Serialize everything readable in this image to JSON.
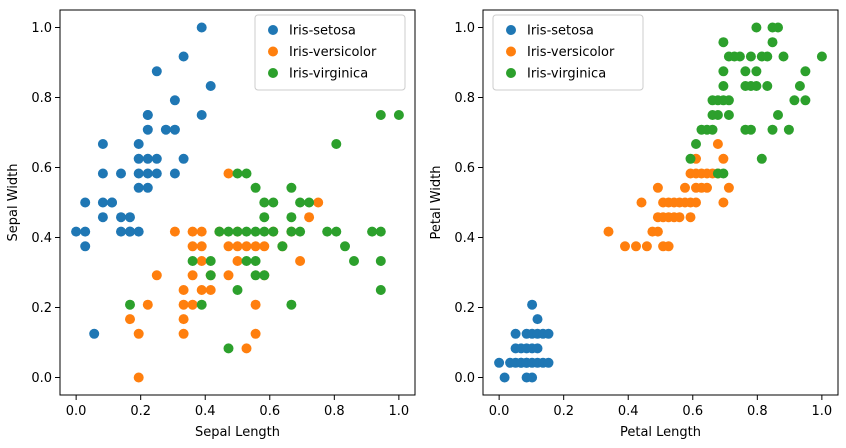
{
  "colors": {
    "Iris-setosa": "#1f77b4",
    "Iris-versicolor": "#ff7f0e",
    "Iris-virginica": "#2ca02c"
  },
  "chart_data": [
    {
      "type": "scatter",
      "xlabel": "Sepal Length",
      "ylabel": "Sepal Width",
      "xlim": [
        -0.05,
        1.05
      ],
      "ylim": [
        -0.05,
        1.05
      ],
      "xticks": [
        "0.0",
        "0.2",
        "0.4",
        "0.6",
        "0.8",
        "1.0"
      ],
      "yticks": [
        "0.0",
        "0.2",
        "0.4",
        "0.6",
        "0.8",
        "1.0"
      ],
      "legend_position": "top-right",
      "series": [
        {
          "name": "Iris-setosa",
          "points": [
            [
              0.0,
              0.417
            ],
            [
              0.028,
              0.417
            ],
            [
              0.028,
              0.375
            ],
            [
              0.028,
              0.5
            ],
            [
              0.056,
              0.125
            ],
            [
              0.083,
              0.458
            ],
            [
              0.083,
              0.5
            ],
            [
              0.083,
              0.583
            ],
            [
              0.083,
              0.667
            ],
            [
              0.111,
              0.5
            ],
            [
              0.111,
              0.5
            ],
            [
              0.139,
              0.583
            ],
            [
              0.139,
              0.458
            ],
            [
              0.139,
              0.417
            ],
            [
              0.167,
              0.458
            ],
            [
              0.167,
              0.417
            ],
            [
              0.167,
              0.417
            ],
            [
              0.194,
              0.417
            ],
            [
              0.194,
              0.583
            ],
            [
              0.194,
              0.625
            ],
            [
              0.194,
              0.667
            ],
            [
              0.194,
              0.542
            ],
            [
              0.222,
              0.542
            ],
            [
              0.222,
              0.583
            ],
            [
              0.222,
              0.625
            ],
            [
              0.222,
              0.708
            ],
            [
              0.222,
              0.75
            ],
            [
              0.222,
              0.75
            ],
            [
              0.25,
              0.583
            ],
            [
              0.25,
              0.625
            ],
            [
              0.25,
              0.875
            ],
            [
              0.278,
              0.708
            ],
            [
              0.306,
              0.708
            ],
            [
              0.306,
              0.792
            ],
            [
              0.306,
              0.583
            ],
            [
              0.333,
              0.625
            ],
            [
              0.333,
              0.917
            ],
            [
              0.389,
              0.75
            ],
            [
              0.389,
              1.0
            ],
            [
              0.417,
              0.833
            ]
          ]
        },
        {
          "name": "Iris-versicolor",
          "points": [
            [
              0.167,
              0.167
            ],
            [
              0.194,
              0.0
            ],
            [
              0.194,
              0.125
            ],
            [
              0.222,
              0.208
            ],
            [
              0.25,
              0.292
            ],
            [
              0.306,
              0.417
            ],
            [
              0.333,
              0.125
            ],
            [
              0.333,
              0.167
            ],
            [
              0.333,
              0.208
            ],
            [
              0.333,
              0.25
            ],
            [
              0.361,
              0.208
            ],
            [
              0.361,
              0.292
            ],
            [
              0.361,
              0.375
            ],
            [
              0.361,
              0.417
            ],
            [
              0.389,
              0.25
            ],
            [
              0.389,
              0.333
            ],
            [
              0.389,
              0.375
            ],
            [
              0.389,
              0.417
            ],
            [
              0.417,
              0.25
            ],
            [
              0.417,
              0.292
            ],
            [
              0.444,
              0.417
            ],
            [
              0.472,
              0.292
            ],
            [
              0.472,
              0.375
            ],
            [
              0.472,
              0.583
            ],
            [
              0.5,
              0.333
            ],
            [
              0.5,
              0.375
            ],
            [
              0.5,
              0.417
            ],
            [
              0.528,
              0.083
            ],
            [
              0.528,
              0.375
            ],
            [
              0.556,
              0.125
            ],
            [
              0.556,
              0.208
            ],
            [
              0.556,
              0.375
            ],
            [
              0.583,
              0.292
            ],
            [
              0.583,
              0.375
            ],
            [
              0.611,
              0.417
            ],
            [
              0.639,
              0.375
            ],
            [
              0.667,
              0.417
            ],
            [
              0.694,
              0.333
            ],
            [
              0.722,
              0.458
            ],
            [
              0.75,
              0.5
            ]
          ]
        },
        {
          "name": "Iris-virginica",
          "points": [
            [
              0.167,
              0.208
            ],
            [
              0.361,
              0.333
            ],
            [
              0.389,
              0.208
            ],
            [
              0.417,
              0.292
            ],
            [
              0.417,
              0.333
            ],
            [
              0.444,
              0.417
            ],
            [
              0.472,
              0.083
            ],
            [
              0.472,
              0.417
            ],
            [
              0.5,
              0.25
            ],
            [
              0.5,
              0.417
            ],
            [
              0.5,
              0.583
            ],
            [
              0.528,
              0.333
            ],
            [
              0.528,
              0.417
            ],
            [
              0.528,
              0.583
            ],
            [
              0.556,
              0.292
            ],
            [
              0.556,
              0.333
            ],
            [
              0.556,
              0.417
            ],
            [
              0.556,
              0.542
            ],
            [
              0.583,
              0.292
            ],
            [
              0.583,
              0.417
            ],
            [
              0.583,
              0.458
            ],
            [
              0.583,
              0.5
            ],
            [
              0.611,
              0.417
            ],
            [
              0.611,
              0.5
            ],
            [
              0.639,
              0.375
            ],
            [
              0.667,
              0.208
            ],
            [
              0.667,
              0.417
            ],
            [
              0.667,
              0.458
            ],
            [
              0.667,
              0.542
            ],
            [
              0.694,
              0.417
            ],
            [
              0.694,
              0.5
            ],
            [
              0.722,
              0.5
            ],
            [
              0.778,
              0.417
            ],
            [
              0.806,
              0.417
            ],
            [
              0.806,
              0.667
            ],
            [
              0.833,
              0.375
            ],
            [
              0.861,
              0.333
            ],
            [
              0.917,
              0.417
            ],
            [
              0.944,
              0.75
            ],
            [
              0.944,
              0.333
            ],
            [
              0.944,
              0.25
            ],
            [
              0.944,
              0.417
            ],
            [
              1.0,
              0.75
            ]
          ]
        }
      ]
    },
    {
      "type": "scatter",
      "xlabel": "Petal Length",
      "ylabel": "Petal Width",
      "xlim": [
        -0.05,
        1.05
      ],
      "ylim": [
        -0.05,
        1.05
      ],
      "xticks": [
        "0.0",
        "0.2",
        "0.4",
        "0.6",
        "0.8",
        "1.0"
      ],
      "yticks": [
        "0.0",
        "0.2",
        "0.4",
        "0.6",
        "0.8",
        "1.0"
      ],
      "legend_position": "top-left",
      "series": [
        {
          "name": "Iris-setosa",
          "points": [
            [
              0.0,
              0.042
            ],
            [
              0.017,
              0.0
            ],
            [
              0.034,
              0.042
            ],
            [
              0.051,
              0.042
            ],
            [
              0.051,
              0.083
            ],
            [
              0.051,
              0.125
            ],
            [
              0.068,
              0.042
            ],
            [
              0.068,
              0.083
            ],
            [
              0.068,
              0.042
            ],
            [
              0.085,
              0.042
            ],
            [
              0.085,
              0.0
            ],
            [
              0.085,
              0.125
            ],
            [
              0.085,
              0.083
            ],
            [
              0.085,
              0.042
            ],
            [
              0.102,
              0.0
            ],
            [
              0.102,
              0.042
            ],
            [
              0.102,
              0.083
            ],
            [
              0.102,
              0.125
            ],
            [
              0.102,
              0.208
            ],
            [
              0.119,
              0.042
            ],
            [
              0.119,
              0.125
            ],
            [
              0.119,
              0.167
            ],
            [
              0.119,
              0.083
            ],
            [
              0.136,
              0.042
            ],
            [
              0.136,
              0.125
            ],
            [
              0.153,
              0.042
            ],
            [
              0.153,
              0.125
            ]
          ]
        },
        {
          "name": "Iris-versicolor",
          "points": [
            [
              0.339,
              0.417
            ],
            [
              0.39,
              0.375
            ],
            [
              0.424,
              0.375
            ],
            [
              0.441,
              0.5
            ],
            [
              0.458,
              0.375
            ],
            [
              0.475,
              0.417
            ],
            [
              0.492,
              0.417
            ],
            [
              0.492,
              0.458
            ],
            [
              0.492,
              0.542
            ],
            [
              0.508,
              0.375
            ],
            [
              0.508,
              0.458
            ],
            [
              0.508,
              0.5
            ],
            [
              0.525,
              0.375
            ],
            [
              0.525,
              0.458
            ],
            [
              0.525,
              0.5
            ],
            [
              0.542,
              0.458
            ],
            [
              0.542,
              0.5
            ],
            [
              0.559,
              0.5
            ],
            [
              0.559,
              0.458
            ],
            [
              0.576,
              0.5
            ],
            [
              0.576,
              0.542
            ],
            [
              0.593,
              0.458
            ],
            [
              0.593,
              0.5
            ],
            [
              0.593,
              0.583
            ],
            [
              0.61,
              0.5
            ],
            [
              0.61,
              0.542
            ],
            [
              0.61,
              0.583
            ],
            [
              0.61,
              0.625
            ],
            [
              0.627,
              0.542
            ],
            [
              0.627,
              0.583
            ],
            [
              0.644,
              0.542
            ],
            [
              0.644,
              0.583
            ],
            [
              0.661,
              0.583
            ],
            [
              0.678,
              0.583
            ],
            [
              0.678,
              0.667
            ],
            [
              0.695,
              0.625
            ],
            [
              0.695,
              0.5
            ],
            [
              0.712,
              0.542
            ]
          ]
        },
        {
          "name": "Iris-virginica",
          "points": [
            [
              0.593,
              0.625
            ],
            [
              0.61,
              0.667
            ],
            [
              0.627,
              0.708
            ],
            [
              0.644,
              0.708
            ],
            [
              0.661,
              0.708
            ],
            [
              0.661,
              0.75
            ],
            [
              0.661,
              0.792
            ],
            [
              0.678,
              0.75
            ],
            [
              0.678,
              0.792
            ],
            [
              0.678,
              0.583
            ],
            [
              0.695,
              0.583
            ],
            [
              0.695,
              0.792
            ],
            [
              0.695,
              0.833
            ],
            [
              0.695,
              0.875
            ],
            [
              0.695,
              0.958
            ],
            [
              0.712,
              0.75
            ],
            [
              0.712,
              0.792
            ],
            [
              0.712,
              0.917
            ],
            [
              0.729,
              0.917
            ],
            [
              0.746,
              0.917
            ],
            [
              0.763,
              0.708
            ],
            [
              0.763,
              0.833
            ],
            [
              0.763,
              0.875
            ],
            [
              0.78,
              0.708
            ],
            [
              0.78,
              0.833
            ],
            [
              0.78,
              0.917
            ],
            [
              0.797,
              0.833
            ],
            [
              0.797,
              0.875
            ],
            [
              0.797,
              1.0
            ],
            [
              0.814,
              0.625
            ],
            [
              0.814,
              0.917
            ],
            [
              0.831,
              0.833
            ],
            [
              0.831,
              0.917
            ],
            [
              0.847,
              0.708
            ],
            [
              0.847,
              0.958
            ],
            [
              0.847,
              1.0
            ],
            [
              0.864,
              0.75
            ],
            [
              0.864,
              1.0
            ],
            [
              0.881,
              0.917
            ],
            [
              0.898,
              0.708
            ],
            [
              0.915,
              0.792
            ],
            [
              0.932,
              0.833
            ],
            [
              0.949,
              0.792
            ],
            [
              0.949,
              0.875
            ],
            [
              1.0,
              0.917
            ]
          ]
        }
      ]
    }
  ]
}
